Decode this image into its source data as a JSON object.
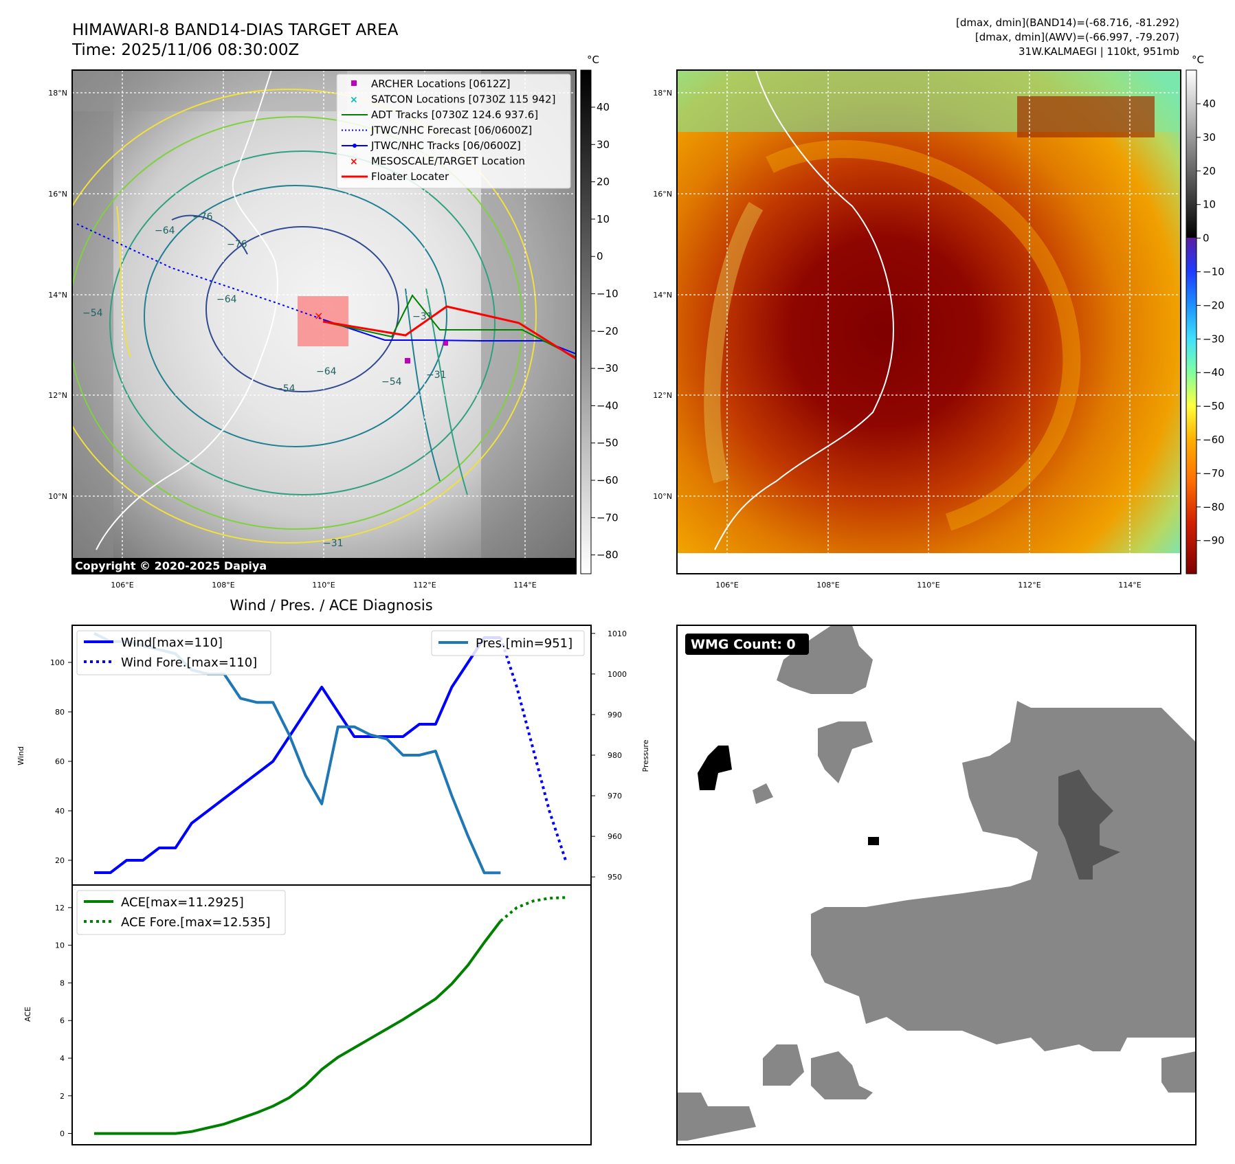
{
  "header": {
    "title_line1": "HIMAWARI-8 BAND14-DIAS TARGET AREA",
    "title_line2": "Time: 2025/11/06 08:30:00Z",
    "info_line1": "[dmax, dmin](BAND14)=(-68.716, -81.292)",
    "info_line2": "[dmax, dmin](AWV)=(-66.997, -79.207)",
    "info_line3": "31W.KALMAEGI | 110kt, 951mb"
  },
  "map_axes": {
    "lon_ticks": [
      "106°E",
      "108°E",
      "110°E",
      "112°E",
      "114°E"
    ],
    "lat_ticks": [
      "18°N",
      "16°N",
      "14°N",
      "12°N",
      "10°N"
    ],
    "lon_values": [
      106,
      108,
      110,
      112,
      114
    ],
    "lat_values": [
      18,
      16,
      14,
      12,
      10
    ]
  },
  "ir_panel": {
    "copyright": "Copyright © 2020-2025 Dapiya",
    "colorbar_unit": "°C",
    "colorbar_ticks": [
      "40",
      "30",
      "20",
      "10",
      "0",
      "−10",
      "−20",
      "−30",
      "−40",
      "−50",
      "−60",
      "−70",
      "−80"
    ],
    "contour_labels": [
      "−76",
      "−76",
      "−64",
      "−64",
      "−54",
      "−54",
      "−31",
      "−31",
      "−31",
      "−64",
      "−54"
    ],
    "legend": [
      {
        "label": "ARCHER Locations [0612Z]",
        "color": "#c000c0",
        "marker": "square"
      },
      {
        "label": "SATCON Locations [0730Z 115 942]",
        "color": "#00c0c0",
        "marker": "x"
      },
      {
        "label": "ADT Tracks [0730Z 124.6 937.6]",
        "color": "#008000",
        "marker": "line"
      },
      {
        "label": "JTWC/NHC Forecast [06/0600Z]",
        "color": "#0000ff",
        "marker": "dotted"
      },
      {
        "label": "JTWC/NHC Tracks [06/0600Z]",
        "color": "#0000ff",
        "marker": "line-dot"
      },
      {
        "label": "MESOSCALE/TARGET Location",
        "color": "#ff0000",
        "marker": "x"
      },
      {
        "label": "Floater Locater",
        "color": "#ff0000",
        "marker": "line"
      }
    ]
  },
  "wv_panel": {
    "colorbar_unit": "°C",
    "colorbar_ticks": [
      "40",
      "30",
      "20",
      "10",
      "0",
      "−10",
      "−20",
      "−30",
      "−40",
      "−50",
      "−60",
      "−70",
      "−80",
      "−90"
    ]
  },
  "diag_panel": {
    "title": "Wind / Pres. / ACE Diagnosis",
    "wind_ylabel": "Wind",
    "pres_ylabel": "Pressure",
    "ace_ylabel": "ACE",
    "legend_wind": "Wind[max=110]",
    "legend_wind_fore": "Wind Fore.[max=110]",
    "legend_pres": "Pres.[min=951]",
    "legend_ace": "ACE[max=11.2925]",
    "legend_ace_fore": "ACE Fore.[max=12.535]"
  },
  "wmg_panel": {
    "badge": "WMG Count: 0"
  },
  "chart_data": [
    {
      "type": "line",
      "name": "wind",
      "x": [
        0,
        1,
        2,
        3,
        4,
        5,
        6,
        7,
        8,
        9,
        10,
        11,
        12,
        13,
        14,
        15,
        16,
        17,
        18,
        19,
        20,
        21,
        22,
        23,
        24,
        25
      ],
      "series": [
        {
          "name": "Wind[max=110]",
          "color": "#0000ff",
          "values": [
            15,
            15,
            20,
            20,
            25,
            25,
            35,
            40,
            45,
            50,
            55,
            60,
            70,
            80,
            90,
            80,
            70,
            70,
            70,
            70,
            75,
            75,
            90,
            100,
            110,
            110
          ]
        },
        {
          "name": "Wind Fore.[max=110]",
          "color": "#0000ff",
          "style": "dotted",
          "x": [
            25,
            26,
            27,
            28,
            29
          ],
          "values": [
            110,
            90,
            65,
            40,
            20
          ]
        }
      ],
      "ylim": [
        10,
        115
      ],
      "yticks": [
        20,
        40,
        60,
        80,
        100
      ],
      "ylabel": "Wind"
    },
    {
      "type": "line",
      "name": "pressure",
      "x": [
        0,
        1,
        2,
        3,
        4,
        5,
        6,
        7,
        8,
        9,
        10,
        11,
        12,
        13,
        14,
        15,
        16,
        17,
        18,
        19,
        20,
        21,
        22,
        23,
        24,
        25
      ],
      "series": [
        {
          "name": "Pres.[min=951]",
          "color": "#1f77b4",
          "values": [
            1010,
            1008,
            1008,
            1007,
            1006,
            1005,
            1001,
            1000,
            1000,
            994,
            993,
            993,
            985,
            975,
            968,
            987,
            987,
            985,
            984,
            980,
            980,
            981,
            970,
            960,
            951,
            951
          ]
        }
      ],
      "ylim": [
        948,
        1012
      ],
      "yticks": [
        950,
        960,
        970,
        980,
        990,
        1000,
        1010
      ],
      "ylabel": "Pressure"
    },
    {
      "type": "line",
      "name": "ace",
      "x": [
        0,
        1,
        2,
        3,
        4,
        5,
        6,
        7,
        8,
        9,
        10,
        11,
        12,
        13,
        14,
        15,
        16,
        17,
        18,
        19,
        20,
        21,
        22,
        23,
        24,
        25
      ],
      "series": [
        {
          "name": "ACE[max=11.2925]",
          "color": "#008000",
          "values": [
            0,
            0,
            0,
            0,
            0,
            0,
            0.1,
            0.3,
            0.5,
            0.8,
            1.1,
            1.45,
            1.9,
            2.55,
            3.4,
            4.05,
            4.55,
            5.05,
            5.55,
            6.05,
            6.6,
            7.15,
            7.95,
            8.95,
            10.15,
            11.29
          ]
        },
        {
          "name": "ACE Fore.[max=12.535]",
          "color": "#008000",
          "style": "dotted",
          "x": [
            25,
            26,
            27,
            28,
            29
          ],
          "values": [
            11.29,
            12.0,
            12.35,
            12.5,
            12.535
          ]
        }
      ],
      "ylim": [
        -0.6,
        13.2
      ],
      "yticks": [
        0,
        2,
        4,
        6,
        8,
        10,
        12
      ],
      "ylabel": "ACE"
    }
  ]
}
